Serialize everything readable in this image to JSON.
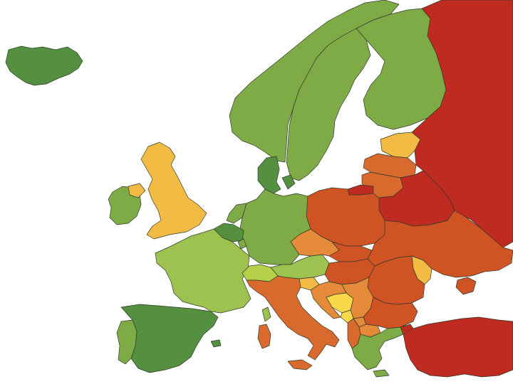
{
  "map": {
    "legend": [],
    "colors": {
      "dark_green": "#558f40",
      "green": "#7fab47",
      "light_green": "#9dc24f",
      "lime": "#b5d14a",
      "yellow": "#f7d849",
      "amber": "#f2bb43",
      "orange": "#e58a38",
      "dark_orange": "#d86a2d",
      "red_orange": "#d05324",
      "red": "#bf2b21",
      "sea": "#ffffff",
      "border": "#2f3a2a"
    },
    "countries": [
      {
        "name": "iceland",
        "color": "dark_green"
      },
      {
        "name": "ireland",
        "color": "green"
      },
      {
        "name": "united-kingdom",
        "color": "amber"
      },
      {
        "name": "norway",
        "color": "green"
      },
      {
        "name": "sweden",
        "color": "green"
      },
      {
        "name": "finland",
        "color": "green"
      },
      {
        "name": "denmark",
        "color": "dark_green"
      },
      {
        "name": "estonia",
        "color": "amber"
      },
      {
        "name": "latvia",
        "color": "dark_orange"
      },
      {
        "name": "lithuania",
        "color": "dark_orange"
      },
      {
        "name": "kaliningrad",
        "color": "red"
      },
      {
        "name": "russia",
        "color": "red"
      },
      {
        "name": "belarus",
        "color": "red"
      },
      {
        "name": "poland",
        "color": "red_orange"
      },
      {
        "name": "germany",
        "color": "green"
      },
      {
        "name": "netherlands",
        "color": "green"
      },
      {
        "name": "belgium",
        "color": "dark_green"
      },
      {
        "name": "luxembourg",
        "color": "green"
      },
      {
        "name": "france",
        "color": "light_green"
      },
      {
        "name": "switzerland",
        "color": "lime"
      },
      {
        "name": "austria",
        "color": "light_green"
      },
      {
        "name": "czechia",
        "color": "orange"
      },
      {
        "name": "slovakia",
        "color": "red_orange"
      },
      {
        "name": "hungary",
        "color": "red_orange"
      },
      {
        "name": "ukraine",
        "color": "red_orange"
      },
      {
        "name": "moldova",
        "color": "amber"
      },
      {
        "name": "romania",
        "color": "red_orange"
      },
      {
        "name": "slovenia",
        "color": "amber"
      },
      {
        "name": "croatia",
        "color": "orange"
      },
      {
        "name": "bosnia",
        "color": "yellow"
      },
      {
        "name": "serbia",
        "color": "orange"
      },
      {
        "name": "montenegro",
        "color": "yellow"
      },
      {
        "name": "kosovo",
        "color": "orange"
      },
      {
        "name": "north-macedonia",
        "color": "orange"
      },
      {
        "name": "albania",
        "color": "dark_orange"
      },
      {
        "name": "bulgaria",
        "color": "red_orange"
      },
      {
        "name": "greece",
        "color": "green"
      },
      {
        "name": "turkey",
        "color": "red"
      },
      {
        "name": "italy",
        "color": "dark_orange"
      },
      {
        "name": "sardinia",
        "color": "dark_orange"
      },
      {
        "name": "corsica",
        "color": "light_green"
      },
      {
        "name": "spain",
        "color": "dark_green"
      },
      {
        "name": "portugal",
        "color": "green"
      },
      {
        "name": "majorca",
        "color": "dark_green"
      },
      {
        "name": "crimea",
        "color": "red_orange"
      }
    ]
  }
}
